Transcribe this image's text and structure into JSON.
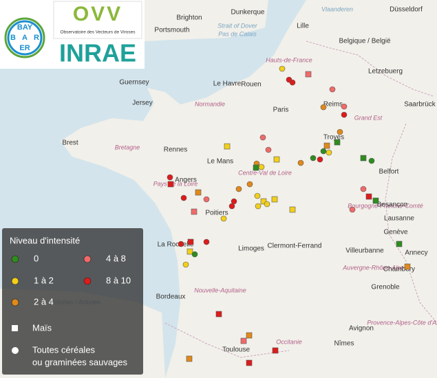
{
  "logos": {
    "bayer_top": "BAY",
    "bayer_left": "B",
    "bayer_right": "R",
    "bayer_center": "A",
    "bayer_bottom": "ER",
    "ovv": "OVV",
    "ovv_subtitle": "Observatoire des Vecteurs de Viroses",
    "inrae": "INRAE"
  },
  "map": {
    "labels": [
      "Dunkerque",
      "Vlaanderen",
      "Düsseldorf",
      "Brighton",
      "Portsmouth",
      "Strait of Dover",
      "Pas de Calais",
      "Lille",
      "Belgique / België",
      "Hauts-de-France",
      "Letzebuerg",
      "Guernsey",
      "Jersey",
      "Le Havre",
      "Rouen",
      "Normandie",
      "Paris",
      "Reims",
      "Grand Est",
      "Saarbrück",
      "Brest",
      "Bretagne",
      "Rennes",
      "Le Mans",
      "Angers",
      "Pays de la Loire",
      "Centre-Val de Loire",
      "Troyes",
      "Belfort",
      "Bourgogne-Franche-Comté",
      "Besançon",
      "Poitiers",
      "Lausanne",
      "Genève",
      "La Rochelle",
      "Limoges",
      "Clermont-Ferrand",
      "Villeurbanne",
      "Annecy",
      "Auvergne-Rhône-Alpes",
      "Chambéry",
      "Bordeaux",
      "Nouvelle-Aquitaine",
      "Asturias / Asturies",
      "Grenoble",
      "Provence-Alpes-Côte d'Azur",
      "Avignon",
      "Nîmes",
      "Toulouse",
      "Occitanie"
    ]
  },
  "legend": {
    "title": "Niveau d'intensité",
    "levels": [
      "0",
      "1 à 2",
      "2 à 4",
      "4 à 8",
      "8 à 10"
    ],
    "shapes": [
      "Maïs",
      "Toutes céréales",
      "ou graminées sauvages"
    ]
  }
}
